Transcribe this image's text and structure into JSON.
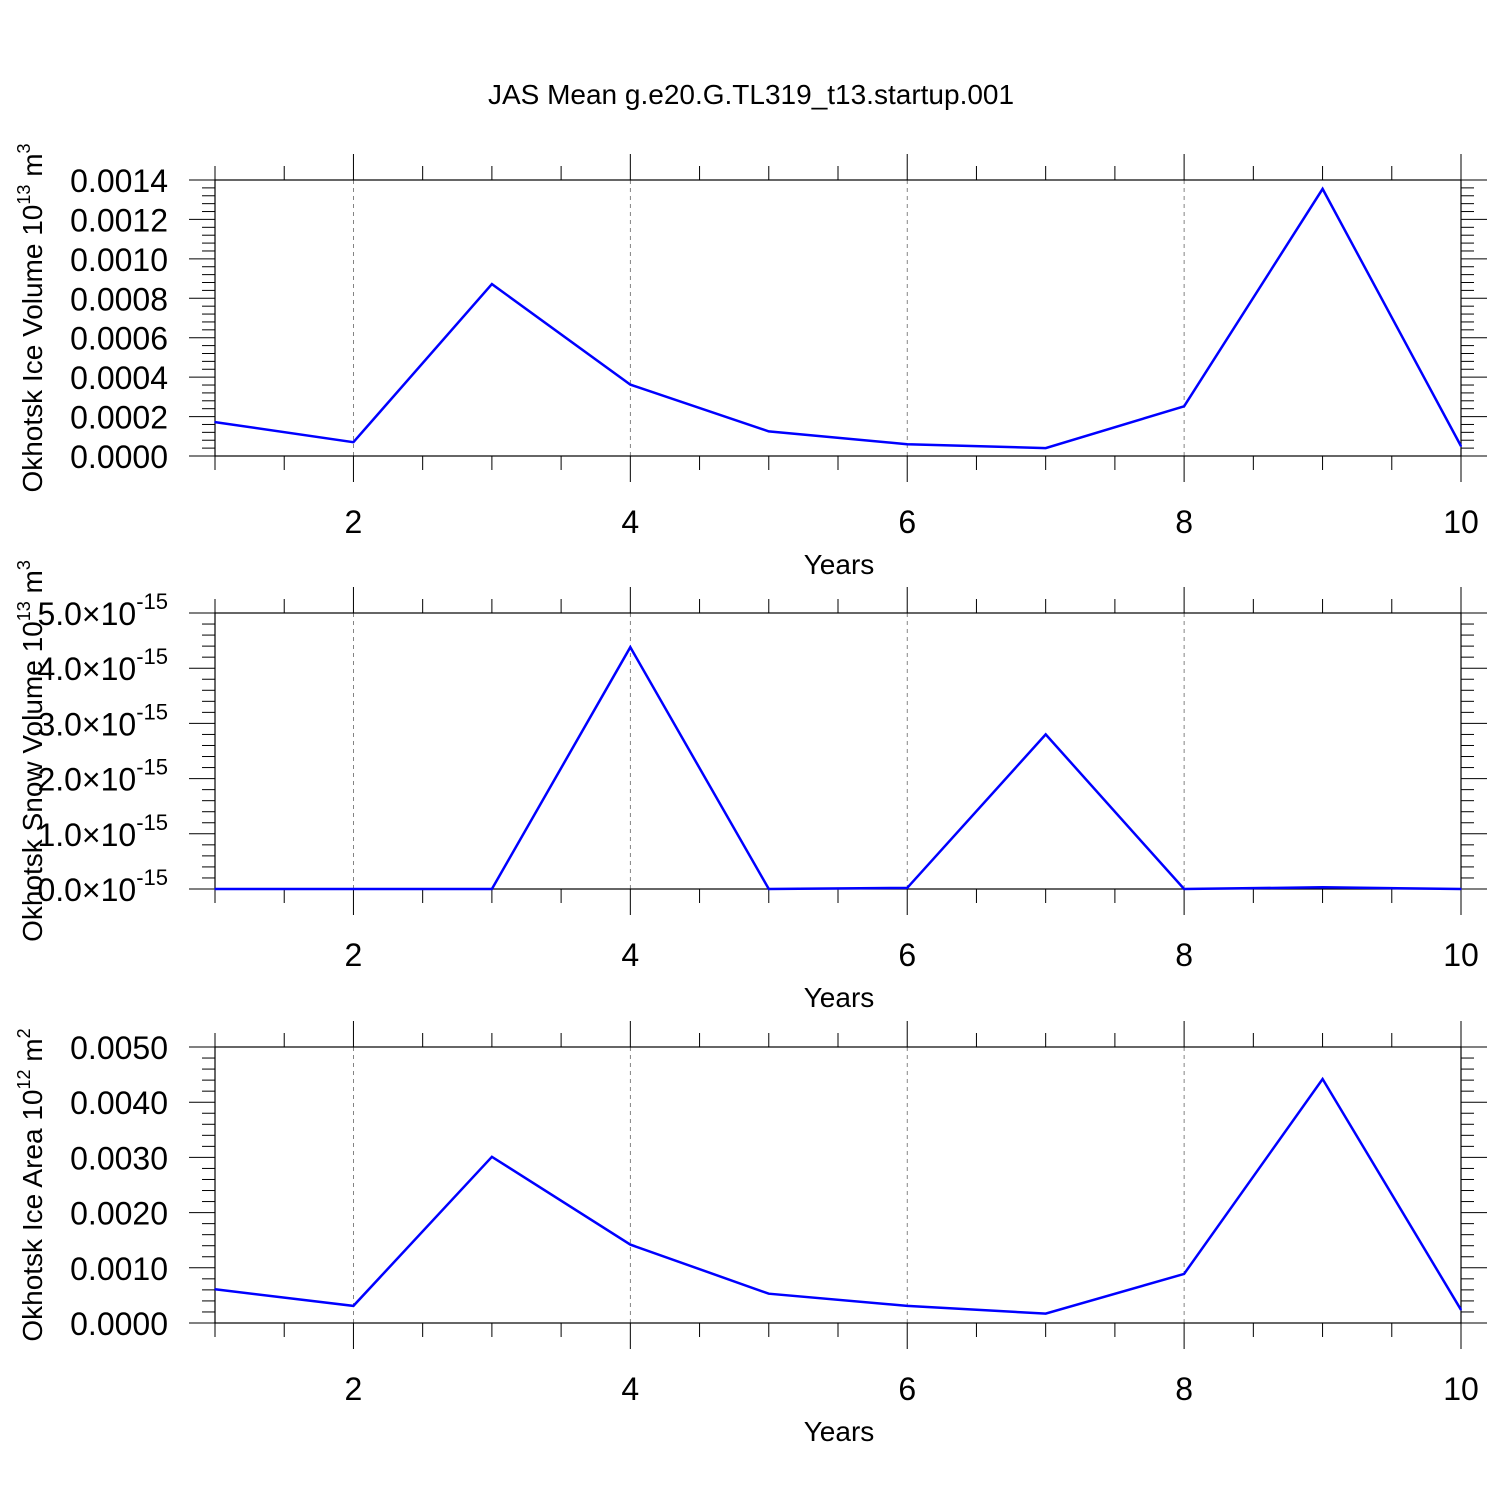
{
  "figure": {
    "title": "JAS Mean g.e20.G.TL319_t13.startup.001"
  },
  "chart_data": [
    {
      "type": "line",
      "xlabel": "Years",
      "ylabel": "Okhotsk Ice Volume 10",
      "ylabel_exp": "13",
      "ylabel_unit": " m",
      "ylabel_unit_exp": "3",
      "xlim": [
        1,
        10
      ],
      "ylim": [
        0,
        0.0014
      ],
      "x_ticks": [
        2,
        4,
        6,
        8,
        10
      ],
      "x_tick_labels": [
        "2",
        "4",
        "6",
        "8",
        "10"
      ],
      "y_ticks": [
        0,
        0.0002,
        0.0004,
        0.0006,
        0.0008,
        0.001,
        0.0012,
        0.0014
      ],
      "y_tick_labels": [
        "0.0000",
        "0.0002",
        "0.0004",
        "0.0006",
        "0.0008",
        "0.0010",
        "0.0012",
        "0.0014"
      ],
      "y_tick_format": "plain",
      "grid": "vertical dashed at major x ticks",
      "series": [
        {
          "color": "#0000ff",
          "x": [
            1,
            2,
            3,
            4,
            5,
            6,
            7,
            8,
            9,
            10
          ],
          "values": [
            0.000172,
            7e-05,
            0.000872,
            0.000362,
            0.000125,
            6e-05,
            4e-05,
            0.000252,
            0.001355,
            5e-05
          ]
        }
      ]
    },
    {
      "type": "line",
      "xlabel": "Years",
      "ylabel": "Okhotsk Snow Volume 10",
      "ylabel_exp": "13",
      "ylabel_unit": " m",
      "ylabel_unit_exp": "3",
      "xlim": [
        1,
        10
      ],
      "ylim": [
        0,
        5e-15
      ],
      "x_ticks": [
        2,
        4,
        6,
        8,
        10
      ],
      "x_tick_labels": [
        "2",
        "4",
        "6",
        "8",
        "10"
      ],
      "y_ticks": [
        0,
        1e-15,
        2e-15,
        3e-15,
        4e-15,
        5e-15
      ],
      "y_tick_labels": [
        "0.0",
        "1.0",
        "2.0",
        "3.0",
        "4.0",
        "5.0"
      ],
      "y_tick_suffix": "×10",
      "y_tick_exp": "-15",
      "grid": "vertical dashed at major x ticks",
      "series": [
        {
          "color": "#0000ff",
          "x": [
            1,
            2,
            3,
            4,
            5,
            6,
            7,
            8,
            9,
            10
          ],
          "values": [
            0,
            0,
            0,
            4.38e-15,
            0,
            2e-17,
            2.8e-15,
            0,
            3e-17,
            0
          ]
        }
      ]
    },
    {
      "type": "line",
      "xlabel": "Years",
      "ylabel": "Okhotsk Ice Area 10",
      "ylabel_exp": "12",
      "ylabel_unit": " m",
      "ylabel_unit_exp": "2",
      "xlim": [
        1,
        10
      ],
      "ylim": [
        0,
        0.005
      ],
      "x_ticks": [
        2,
        4,
        6,
        8,
        10
      ],
      "x_tick_labels": [
        "2",
        "4",
        "6",
        "8",
        "10"
      ],
      "y_ticks": [
        0,
        0.001,
        0.002,
        0.003,
        0.004,
        0.005
      ],
      "y_tick_labels": [
        "0.0000",
        "0.0010",
        "0.0020",
        "0.0030",
        "0.0040",
        "0.0050"
      ],
      "y_tick_format": "plain",
      "grid": "vertical dashed at major x ticks",
      "series": [
        {
          "color": "#0000ff",
          "x": [
            1,
            2,
            3,
            4,
            5,
            6,
            7,
            8,
            9,
            10
          ],
          "values": [
            0.00061,
            0.00031,
            0.00301,
            0.00142,
            0.00053,
            0.00031,
            0.00017,
            0.00089,
            0.00442,
            0.00024
          ]
        }
      ]
    }
  ]
}
